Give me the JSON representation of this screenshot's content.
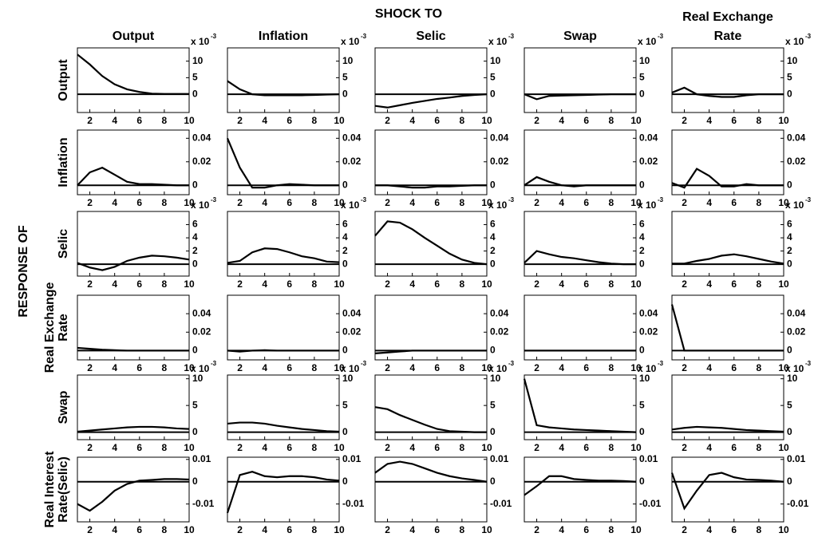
{
  "title": "SHOCK TO",
  "ylabel": "RESPONSE OF",
  "columns": [
    [
      "Output"
    ],
    [
      "Inflation"
    ],
    [
      "Selic"
    ],
    [
      "Swap"
    ],
    [
      "Real Exchange",
      "Rate"
    ]
  ],
  "rows": [
    [
      "Output"
    ],
    [
      "Inflation"
    ],
    [
      "Selic"
    ],
    [
      "Real Exchange",
      "Rate"
    ],
    [
      "Swap"
    ],
    [
      "Real Interest",
      "Rate(Selic)"
    ]
  ],
  "chart_data": [
    {
      "type": "line",
      "x": [
        1,
        2,
        3,
        4,
        5,
        6,
        7,
        8,
        9,
        10
      ],
      "values": [
        12,
        9,
        5.5,
        3,
        1.5,
        0.7,
        0.2,
        0.1,
        0.1,
        0.1
      ],
      "xlim": [
        1,
        10
      ],
      "xticks": [
        2,
        4,
        6,
        8,
        10
      ],
      "ylim": [
        -5.5,
        14
      ],
      "yticks": [
        0,
        5,
        10
      ],
      "color": "#000000",
      "zero_line": true,
      "multiplier": "x 10",
      "exponent": "-3"
    },
    {
      "type": "line",
      "x": [
        1,
        2,
        3,
        4,
        5,
        6,
        7,
        8,
        9,
        10
      ],
      "values": [
        4,
        1.5,
        0,
        -0.3,
        -0.3,
        -0.3,
        -0.3,
        -0.2,
        -0.1,
        0
      ],
      "xlim": [
        1,
        10
      ],
      "xticks": [
        2,
        4,
        6,
        8,
        10
      ],
      "ylim": [
        -5.5,
        14
      ],
      "yticks": [
        0,
        5,
        10
      ],
      "color": "#000000",
      "zero_line": true,
      "multiplier": "x 10",
      "exponent": "-3"
    },
    {
      "type": "line",
      "x": [
        1,
        2,
        3,
        4,
        5,
        6,
        7,
        8,
        9,
        10
      ],
      "values": [
        -3.5,
        -4,
        -3.3,
        -2.6,
        -2,
        -1.4,
        -1,
        -0.5,
        -0.2,
        0
      ],
      "xlim": [
        1,
        10
      ],
      "xticks": [
        2,
        4,
        6,
        8,
        10
      ],
      "ylim": [
        -5.5,
        14
      ],
      "yticks": [
        0,
        5,
        10
      ],
      "color": "#000000",
      "zero_line": true,
      "multiplier": "x 10",
      "exponent": "-3"
    },
    {
      "type": "line",
      "x": [
        1,
        2,
        3,
        4,
        5,
        6,
        7,
        8,
        9,
        10
      ],
      "values": [
        0,
        -1.5,
        -0.5,
        -0.4,
        -0.3,
        -0.2,
        -0.1,
        0,
        0,
        0
      ],
      "xlim": [
        1,
        10
      ],
      "xticks": [
        2,
        4,
        6,
        8,
        10
      ],
      "ylim": [
        -5.5,
        14
      ],
      "yticks": [
        0,
        5,
        10
      ],
      "color": "#000000",
      "zero_line": true,
      "multiplier": "x 10",
      "exponent": "-3"
    },
    {
      "type": "line",
      "x": [
        1,
        2,
        3,
        4,
        5,
        6,
        7,
        8,
        9,
        10
      ],
      "values": [
        0.5,
        2,
        0,
        -0.5,
        -0.8,
        -0.8,
        -0.3,
        0,
        0,
        0
      ],
      "xlim": [
        1,
        10
      ],
      "xticks": [
        2,
        4,
        6,
        8,
        10
      ],
      "ylim": [
        -5.5,
        14
      ],
      "yticks": [
        0,
        5,
        10
      ],
      "color": "#000000",
      "zero_line": true,
      "multiplier": "x 10",
      "exponent": "-3"
    },
    {
      "type": "line",
      "x": [
        1,
        2,
        3,
        4,
        5,
        6,
        7,
        8,
        9,
        10
      ],
      "values": [
        0,
        0.011,
        0.015,
        0.009,
        0.003,
        0.001,
        0.001,
        0.0005,
        0,
        0
      ],
      "xlim": [
        1,
        10
      ],
      "xticks": [
        2,
        4,
        6,
        8,
        10
      ],
      "ylim": [
        -0.008,
        0.047
      ],
      "yticks": [
        0,
        0.02,
        0.04
      ],
      "color": "#000000",
      "zero_line": true
    },
    {
      "type": "line",
      "x": [
        1,
        2,
        3,
        4,
        5,
        6,
        7,
        8,
        9,
        10
      ],
      "values": [
        0.04,
        0.015,
        -0.002,
        -0.002,
        0,
        0.001,
        0.0005,
        0,
        0,
        0
      ],
      "xlim": [
        1,
        10
      ],
      "xticks": [
        2,
        4,
        6,
        8,
        10
      ],
      "ylim": [
        -0.008,
        0.047
      ],
      "yticks": [
        0,
        0.02,
        0.04
      ],
      "color": "#000000",
      "zero_line": true
    },
    {
      "type": "line",
      "x": [
        1,
        2,
        3,
        4,
        5,
        6,
        7,
        8,
        9,
        10
      ],
      "values": [
        0,
        0,
        -0.001,
        -0.002,
        -0.002,
        -0.001,
        -0.001,
        -0.0005,
        0,
        0
      ],
      "xlim": [
        1,
        10
      ],
      "xticks": [
        2,
        4,
        6,
        8,
        10
      ],
      "ylim": [
        -0.008,
        0.047
      ],
      "yticks": [
        0,
        0.02,
        0.04
      ],
      "color": "#000000",
      "zero_line": true
    },
    {
      "type": "line",
      "x": [
        1,
        2,
        3,
        4,
        5,
        6,
        7,
        8,
        9,
        10
      ],
      "values": [
        0,
        0.007,
        0.003,
        0,
        -0.001,
        0,
        0,
        0,
        0,
        0
      ],
      "xlim": [
        1,
        10
      ],
      "xticks": [
        2,
        4,
        6,
        8,
        10
      ],
      "ylim": [
        -0.008,
        0.047
      ],
      "yticks": [
        0,
        0.02,
        0.04
      ],
      "color": "#000000",
      "zero_line": true
    },
    {
      "type": "line",
      "x": [
        1,
        2,
        3,
        4,
        5,
        6,
        7,
        8,
        9,
        10
      ],
      "values": [
        0.002,
        -0.002,
        0.014,
        0.008,
        -0.001,
        -0.001,
        0.001,
        0,
        0,
        0
      ],
      "xlim": [
        1,
        10
      ],
      "xticks": [
        2,
        4,
        6,
        8,
        10
      ],
      "ylim": [
        -0.008,
        0.047
      ],
      "yticks": [
        0,
        0.02,
        0.04
      ],
      "color": "#000000",
      "zero_line": true
    },
    {
      "type": "line",
      "x": [
        1,
        2,
        3,
        4,
        5,
        6,
        7,
        8,
        9,
        10
      ],
      "values": [
        0.2,
        -0.5,
        -0.9,
        -0.4,
        0.5,
        1,
        1.3,
        1.2,
        1,
        0.7
      ],
      "xlim": [
        1,
        10
      ],
      "xticks": [
        2,
        4,
        6,
        8,
        10
      ],
      "ylim": [
        -1.8,
        8
      ],
      "yticks": [
        0,
        2,
        4,
        6
      ],
      "color": "#000000",
      "zero_line": true,
      "multiplier": "x 10",
      "exponent": "-3"
    },
    {
      "type": "line",
      "x": [
        1,
        2,
        3,
        4,
        5,
        6,
        7,
        8,
        9,
        10
      ],
      "values": [
        0.2,
        0.5,
        1.8,
        2.4,
        2.3,
        1.8,
        1.2,
        0.9,
        0.4,
        0.3
      ],
      "xlim": [
        1,
        10
      ],
      "xticks": [
        2,
        4,
        6,
        8,
        10
      ],
      "ylim": [
        -1.8,
        8
      ],
      "yticks": [
        0,
        2,
        4,
        6
      ],
      "color": "#000000",
      "zero_line": true,
      "multiplier": "x 10",
      "exponent": "-3"
    },
    {
      "type": "line",
      "x": [
        1,
        2,
        3,
        4,
        5,
        6,
        7,
        8,
        9,
        10
      ],
      "values": [
        4.3,
        6.5,
        6.3,
        5.3,
        4,
        2.8,
        1.6,
        0.7,
        0.2,
        0
      ],
      "xlim": [
        1,
        10
      ],
      "xticks": [
        2,
        4,
        6,
        8,
        10
      ],
      "ylim": [
        -1.8,
        8
      ],
      "yticks": [
        0,
        2,
        4,
        6
      ],
      "color": "#000000",
      "zero_line": true,
      "multiplier": "x 10",
      "exponent": "-3"
    },
    {
      "type": "line",
      "x": [
        1,
        2,
        3,
        4,
        5,
        6,
        7,
        8,
        9,
        10
      ],
      "values": [
        0.2,
        2,
        1.5,
        1.1,
        0.9,
        0.6,
        0.3,
        0.1,
        0,
        0
      ],
      "xlim": [
        1,
        10
      ],
      "xticks": [
        2,
        4,
        6,
        8,
        10
      ],
      "ylim": [
        -1.8,
        8
      ],
      "yticks": [
        0,
        2,
        4,
        6
      ],
      "color": "#000000",
      "zero_line": true,
      "multiplier": "x 10",
      "exponent": "-3"
    },
    {
      "type": "line",
      "x": [
        1,
        2,
        3,
        4,
        5,
        6,
        7,
        8,
        9,
        10
      ],
      "values": [
        0.1,
        0.1,
        0.5,
        0.8,
        1.3,
        1.5,
        1.2,
        0.8,
        0.4,
        0.1
      ],
      "xlim": [
        1,
        10
      ],
      "xticks": [
        2,
        4,
        6,
        8,
        10
      ],
      "ylim": [
        -1.8,
        8
      ],
      "yticks": [
        0,
        2,
        4,
        6
      ],
      "color": "#000000",
      "zero_line": true,
      "multiplier": "x 10",
      "exponent": "-3"
    },
    {
      "type": "line",
      "x": [
        1,
        2,
        3,
        4,
        5,
        6,
        7,
        8,
        9,
        10
      ],
      "values": [
        0.003,
        0.002,
        0.001,
        0.0005,
        0,
        0,
        0,
        0,
        0,
        0
      ],
      "xlim": [
        1,
        10
      ],
      "xticks": [
        2,
        4,
        6,
        8,
        10
      ],
      "ylim": [
        -0.01,
        0.06
      ],
      "yticks": [
        0,
        0.02,
        0.04
      ],
      "color": "#000000",
      "zero_line": true
    },
    {
      "type": "line",
      "x": [
        1,
        2,
        3,
        4,
        5,
        6,
        7,
        8,
        9,
        10
      ],
      "values": [
        0,
        -0.001,
        0,
        0.0005,
        0,
        0,
        0,
        0,
        0,
        0
      ],
      "xlim": [
        1,
        10
      ],
      "xticks": [
        2,
        4,
        6,
        8,
        10
      ],
      "ylim": [
        -0.01,
        0.06
      ],
      "yticks": [
        0,
        0.02,
        0.04
      ],
      "color": "#000000",
      "zero_line": true
    },
    {
      "type": "line",
      "x": [
        1,
        2,
        3,
        4,
        5,
        6,
        7,
        8,
        9,
        10
      ],
      "values": [
        -0.003,
        -0.002,
        -0.001,
        0,
        0,
        0,
        0,
        0,
        0,
        0
      ],
      "xlim": [
        1,
        10
      ],
      "xticks": [
        2,
        4,
        6,
        8,
        10
      ],
      "ylim": [
        -0.01,
        0.06
      ],
      "yticks": [
        0,
        0.02,
        0.04
      ],
      "color": "#000000",
      "zero_line": true
    },
    {
      "type": "line",
      "x": [
        1,
        2,
        3,
        4,
        5,
        6,
        7,
        8,
        9,
        10
      ],
      "values": [
        0,
        0,
        0,
        0,
        0,
        0,
        0,
        0,
        0,
        0
      ],
      "xlim": [
        1,
        10
      ],
      "xticks": [
        2,
        4,
        6,
        8,
        10
      ],
      "ylim": [
        -0.01,
        0.06
      ],
      "yticks": [
        0,
        0.02,
        0.04
      ],
      "color": "#000000",
      "zero_line": true
    },
    {
      "type": "line",
      "x": [
        1,
        2,
        3,
        4,
        5,
        6,
        7,
        8,
        9,
        10
      ],
      "values": [
        0.05,
        0,
        0,
        0,
        0,
        0,
        0,
        0,
        0,
        0
      ],
      "xlim": [
        1,
        10
      ],
      "xticks": [
        2,
        4,
        6,
        8,
        10
      ],
      "ylim": [
        -0.01,
        0.06
      ],
      "yticks": [
        0,
        0.02,
        0.04
      ],
      "color": "#000000",
      "zero_line": true
    },
    {
      "type": "line",
      "x": [
        1,
        2,
        3,
        4,
        5,
        6,
        7,
        8,
        9,
        10
      ],
      "values": [
        0.1,
        0.3,
        0.5,
        0.7,
        0.9,
        1,
        1,
        0.9,
        0.7,
        0.6
      ],
      "xlim": [
        1,
        10
      ],
      "xticks": [
        2,
        4,
        6,
        8,
        10
      ],
      "ylim": [
        -1.4,
        10.7
      ],
      "yticks": [
        0,
        5,
        10
      ],
      "color": "#000000",
      "zero_line": true,
      "multiplier": "x 10",
      "exponent": "-3"
    },
    {
      "type": "line",
      "x": [
        1,
        2,
        3,
        4,
        5,
        6,
        7,
        8,
        9,
        10
      ],
      "values": [
        1.6,
        1.8,
        1.8,
        1.6,
        1.2,
        0.9,
        0.6,
        0.4,
        0.2,
        0.1
      ],
      "xlim": [
        1,
        10
      ],
      "xticks": [
        2,
        4,
        6,
        8,
        10
      ],
      "ylim": [
        -1.4,
        10.7
      ],
      "yticks": [
        0,
        5,
        10
      ],
      "color": "#000000",
      "zero_line": true,
      "multiplier": "x 10",
      "exponent": "-3"
    },
    {
      "type": "line",
      "x": [
        1,
        2,
        3,
        4,
        5,
        6,
        7,
        8,
        9,
        10
      ],
      "values": [
        4.7,
        4.3,
        3.2,
        2.3,
        1.4,
        0.6,
        0.2,
        0.1,
        0,
        0
      ],
      "xlim": [
        1,
        10
      ],
      "xticks": [
        2,
        4,
        6,
        8,
        10
      ],
      "ylim": [
        -1.4,
        10.7
      ],
      "yticks": [
        0,
        5,
        10
      ],
      "color": "#000000",
      "zero_line": true,
      "multiplier": "x 10",
      "exponent": "-3"
    },
    {
      "type": "line",
      "x": [
        1,
        2,
        3,
        4,
        5,
        6,
        7,
        8,
        9,
        10
      ],
      "values": [
        10,
        1.3,
        0.9,
        0.7,
        0.5,
        0.4,
        0.3,
        0.2,
        0.1,
        0
      ],
      "xlim": [
        1,
        10
      ],
      "xticks": [
        2,
        4,
        6,
        8,
        10
      ],
      "ylim": [
        -1.4,
        10.7
      ],
      "yticks": [
        0,
        5,
        10
      ],
      "color": "#000000",
      "zero_line": true,
      "multiplier": "x 10",
      "exponent": "-3"
    },
    {
      "type": "line",
      "x": [
        1,
        2,
        3,
        4,
        5,
        6,
        7,
        8,
        9,
        10
      ],
      "values": [
        0.5,
        0.8,
        1,
        0.9,
        0.8,
        0.6,
        0.4,
        0.3,
        0.2,
        0.1
      ],
      "xlim": [
        1,
        10
      ],
      "xticks": [
        2,
        4,
        6,
        8,
        10
      ],
      "ylim": [
        -1.4,
        10.7
      ],
      "yticks": [
        0,
        5,
        10
      ],
      "color": "#000000",
      "zero_line": true,
      "multiplier": "x 10",
      "exponent": "-3"
    },
    {
      "type": "line",
      "x": [
        1,
        2,
        3,
        4,
        5,
        6,
        7,
        8,
        9,
        10
      ],
      "values": [
        -0.01,
        -0.013,
        -0.009,
        -0.004,
        -0.001,
        0.0005,
        0.0008,
        0.0012,
        0.0012,
        0.001
      ],
      "xlim": [
        1,
        10
      ],
      "xticks": [
        2,
        4,
        6,
        8,
        10
      ],
      "ylim": [
        -0.018,
        0.011
      ],
      "yticks": [
        -0.01,
        0,
        0.01
      ],
      "color": "#000000",
      "zero_line": true
    },
    {
      "type": "line",
      "x": [
        1,
        2,
        3,
        4,
        5,
        6,
        7,
        8,
        9,
        10
      ],
      "values": [
        -0.014,
        0.003,
        0.0045,
        0.0025,
        0.002,
        0.0025,
        0.0025,
        0.002,
        0.001,
        0.0005
      ],
      "xlim": [
        1,
        10
      ],
      "xticks": [
        2,
        4,
        6,
        8,
        10
      ],
      "ylim": [
        -0.018,
        0.011
      ],
      "yticks": [
        -0.01,
        0,
        0.01
      ],
      "color": "#000000",
      "zero_line": true
    },
    {
      "type": "line",
      "x": [
        1,
        2,
        3,
        4,
        5,
        6,
        7,
        8,
        9,
        10
      ],
      "values": [
        0.004,
        0.008,
        0.009,
        0.008,
        0.006,
        0.004,
        0.0025,
        0.0015,
        0.0008,
        0
      ],
      "xlim": [
        1,
        10
      ],
      "xticks": [
        2,
        4,
        6,
        8,
        10
      ],
      "ylim": [
        -0.018,
        0.011
      ],
      "yticks": [
        -0.01,
        0,
        0.01
      ],
      "color": "#000000",
      "zero_line": true
    },
    {
      "type": "line",
      "x": [
        1,
        2,
        3,
        4,
        5,
        6,
        7,
        8,
        9,
        10
      ],
      "values": [
        -0.006,
        -0.002,
        0.0025,
        0.0025,
        0.0012,
        0.0008,
        0.0005,
        0.0005,
        0.0003,
        0
      ],
      "xlim": [
        1,
        10
      ],
      "xticks": [
        2,
        4,
        6,
        8,
        10
      ],
      "ylim": [
        -0.018,
        0.011
      ],
      "yticks": [
        -0.01,
        0,
        0.01
      ],
      "color": "#000000",
      "zero_line": true
    },
    {
      "type": "line",
      "x": [
        1,
        2,
        3,
        4,
        5,
        6,
        7,
        8,
        9,
        10
      ],
      "values": [
        0.004,
        -0.012,
        -0.004,
        0.003,
        0.004,
        0.002,
        0.001,
        0.0008,
        0.0005,
        0
      ],
      "xlim": [
        1,
        10
      ],
      "xticks": [
        2,
        4,
        6,
        8,
        10
      ],
      "ylim": [
        -0.018,
        0.011
      ],
      "yticks": [
        -0.01,
        0,
        0.01
      ],
      "color": "#000000",
      "zero_line": true
    }
  ]
}
